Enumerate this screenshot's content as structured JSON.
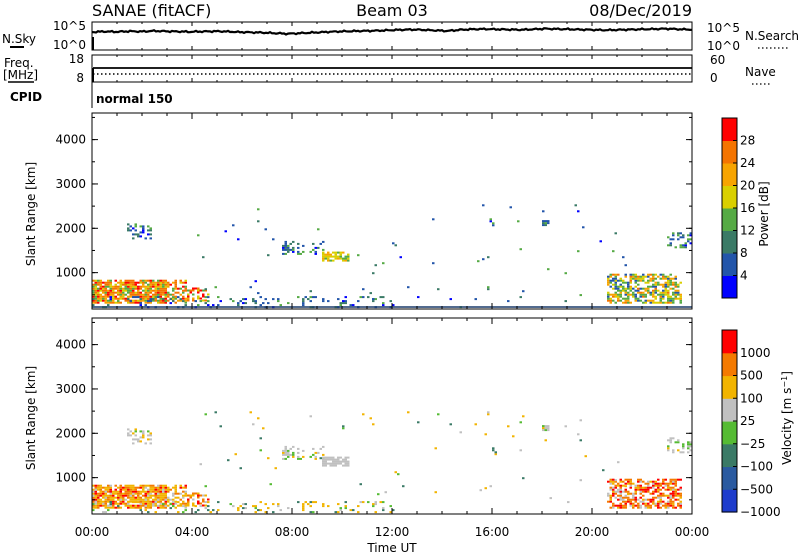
{
  "header": {
    "station": "SANAE (fitACF)",
    "beam": "Beam 03",
    "date": "08/Dec/2019"
  },
  "top_panel": {
    "left_label": "N.Sky",
    "right_label": "N.Search",
    "left_ticks": [
      "10^5",
      "10^0"
    ],
    "right_ticks": [
      "10^5",
      "10^0"
    ],
    "series_profile": [
      0.64,
      0.66,
      0.65,
      0.67,
      0.66,
      0.68,
      0.67,
      0.66,
      0.65,
      0.66,
      0.67,
      0.66,
      0.64,
      0.63,
      0.62,
      0.6,
      0.58,
      0.6,
      0.62,
      0.64,
      0.66,
      0.67,
      0.68,
      0.69,
      0.7,
      0.72,
      0.73,
      0.72,
      0.7,
      0.68,
      0.72,
      0.74,
      0.75,
      0.74,
      0.73,
      0.72,
      0.74,
      0.76,
      0.75,
      0.74,
      0.73,
      0.72,
      0.71,
      0.72,
      0.73,
      0.74,
      0.75,
      0.76,
      0.74,
      0.73
    ]
  },
  "freq_panel": {
    "left_label_1": "Freq.",
    "left_label_2": "[MHz]",
    "left_ticks": [
      "18",
      "8"
    ],
    "right_ticks": [
      "60",
      "0"
    ],
    "right_label": "Nave",
    "cpid_label": "CPID",
    "mode_label": "normal 150"
  },
  "chart_data": [
    {
      "type": "heatmap",
      "name": "power",
      "ylabel": "Slant Range [km]",
      "ylim": [
        180,
        4600
      ],
      "yticks": [
        "4000",
        "3000",
        "2000",
        "1000"
      ],
      "colorbar_label": "Power [dB]",
      "colorbar_ticks": [
        "28",
        "24",
        "20",
        "16",
        "12",
        "8",
        "4"
      ],
      "colors": [
        "#0000ff",
        "#2255aa",
        "#3a7a66",
        "#55aa44",
        "#d9cf00",
        "#f7a400",
        "#f47400",
        "#ff0000"
      ]
    },
    {
      "type": "heatmap",
      "name": "velocity",
      "ylabel": "Slant Range [km]",
      "ylim": [
        180,
        4600
      ],
      "yticks": [
        "4000",
        "3000",
        "2000",
        "1000"
      ],
      "colorbar_label": "Velocity [m s^-1]",
      "colorbar_ticks": [
        "1000",
        "500",
        "100",
        "25",
        "−25",
        "−100",
        "−500",
        "−1000"
      ],
      "colors": [
        "#1e3ccc",
        "#2a5aa0",
        "#3a7a66",
        "#55bb33",
        "#c0c0c0",
        "#f2b400",
        "#f47a00",
        "#ff0000"
      ],
      "xticks": [
        "00:00",
        "04:00",
        "08:00",
        "12:00",
        "16:00",
        "20:00",
        "00:00"
      ],
      "xlabel": "Time UT"
    }
  ]
}
